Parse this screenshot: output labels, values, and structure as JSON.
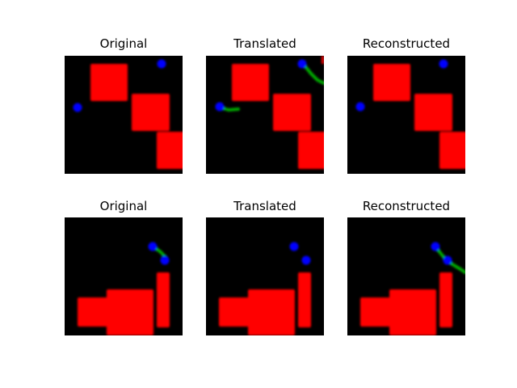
{
  "figure": {
    "rows": [
      {
        "panels": [
          {
            "title": "Original"
          },
          {
            "title": "Translated"
          },
          {
            "title": "Reconstructed"
          }
        ]
      },
      {
        "panels": [
          {
            "title": "Original"
          },
          {
            "title": "Translated"
          },
          {
            "title": "Reconstructed"
          }
        ]
      }
    ]
  },
  "colors": {
    "background": "#000000",
    "block": "#ff0000",
    "dot": "#0000ff",
    "trail": "#00aa00"
  }
}
